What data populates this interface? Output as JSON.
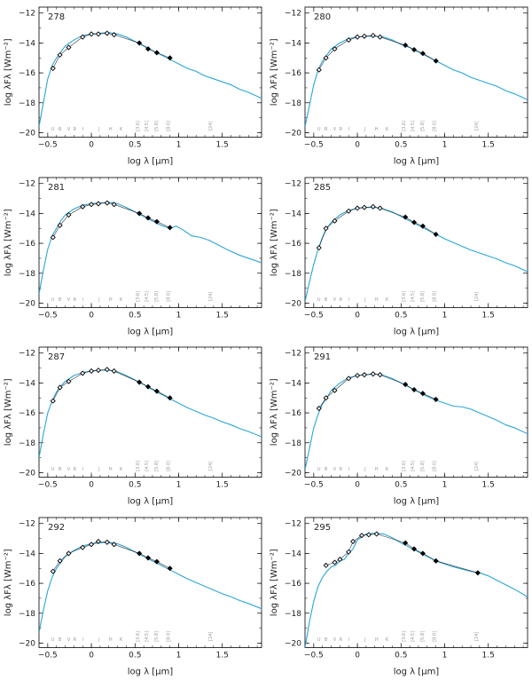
{
  "chart_data": [
    {
      "type": "line",
      "label": "278",
      "xlabel": "log λ [μm]",
      "ylabel": "log λFλ [Wm⁻²]",
      "xlim": [
        -0.6,
        1.95
      ],
      "ylim": [
        -20.3,
        -11.6
      ],
      "xticks": [
        -0.5,
        0,
        0.5,
        1,
        1.5
      ],
      "yticks": [
        -20,
        -18,
        -16,
        -14,
        -12
      ],
      "band_labels": [
        "U",
        "B",
        "V",
        "R",
        "I",
        "J",
        "H",
        "K",
        "[3.6]",
        "[4.5]",
        "[5.8]",
        "[8.0]",
        "[24]"
      ],
      "model": {
        "x": [
          -0.6,
          -0.55,
          -0.5,
          -0.45,
          -0.4,
          -0.35,
          -0.3,
          -0.2,
          -0.1,
          0.0,
          0.1,
          0.2,
          0.3,
          0.4,
          0.5,
          0.6,
          0.7,
          0.8,
          0.9,
          1.0,
          1.1,
          1.2,
          1.3,
          1.4,
          1.5,
          1.6,
          1.7,
          1.8,
          1.95
        ],
        "y": [
          -19.6,
          -18.0,
          -16.4,
          -15.5,
          -15.0,
          -14.6,
          -14.2,
          -13.8,
          -13.5,
          -13.4,
          -13.35,
          -13.3,
          -13.4,
          -13.6,
          -13.9,
          -14.2,
          -14.5,
          -14.8,
          -15.1,
          -15.4,
          -15.7,
          -15.9,
          -16.2,
          -16.4,
          -16.6,
          -16.8,
          -17.1,
          -17.3,
          -17.7
        ]
      },
      "photometry": {
        "x": [
          -0.44,
          -0.36,
          -0.26,
          -0.1,
          0.0,
          0.08,
          0.18,
          0.26,
          0.55,
          0.65,
          0.75,
          0.9
        ],
        "y": [
          -15.7,
          -14.8,
          -14.3,
          -13.6,
          -13.4,
          -13.4,
          -13.35,
          -13.45,
          -14.0,
          -14.4,
          -14.65,
          -15.0
        ]
      }
    },
    {
      "type": "line",
      "label": "280",
      "xlabel": "log λ [μm]",
      "ylabel": "log λFλ [Wm⁻²]",
      "xlim": [
        -0.6,
        1.95
      ],
      "ylim": [
        -20.3,
        -11.6
      ],
      "xticks": [
        -0.5,
        0,
        0.5,
        1,
        1.5
      ],
      "yticks": [
        -20,
        -18,
        -16,
        -14,
        -12
      ],
      "band_labels": [
        "U",
        "B",
        "V",
        "R",
        "I",
        "J",
        "H",
        "K",
        "[3.6]",
        "[4.5]",
        "[5.8]",
        "[8.0]",
        "[24]"
      ],
      "model": {
        "x": [
          -0.6,
          -0.55,
          -0.5,
          -0.45,
          -0.4,
          -0.35,
          -0.3,
          -0.2,
          -0.1,
          0.0,
          0.1,
          0.2,
          0.3,
          0.4,
          0.5,
          0.6,
          0.7,
          0.8,
          0.9,
          1.0,
          1.1,
          1.2,
          1.3,
          1.4,
          1.5,
          1.6,
          1.7,
          1.8,
          1.95
        ],
        "y": [
          -19.6,
          -18.2,
          -16.8,
          -15.8,
          -15.2,
          -14.8,
          -14.4,
          -14.0,
          -13.7,
          -13.6,
          -13.55,
          -13.55,
          -13.6,
          -13.8,
          -14.1,
          -14.3,
          -14.6,
          -14.9,
          -15.2,
          -15.5,
          -15.8,
          -16.0,
          -16.3,
          -16.5,
          -16.7,
          -16.9,
          -17.2,
          -17.4,
          -17.8
        ]
      },
      "photometry": {
        "x": [
          -0.44,
          -0.36,
          -0.26,
          -0.1,
          0.0,
          0.08,
          0.18,
          0.26,
          0.55,
          0.65,
          0.75,
          0.9
        ],
        "y": [
          -15.8,
          -15.0,
          -14.4,
          -13.8,
          -13.6,
          -13.55,
          -13.5,
          -13.6,
          -14.15,
          -14.45,
          -14.7,
          -15.2
        ]
      }
    },
    {
      "type": "line",
      "label": "281",
      "xlabel": "log λ [μm]",
      "ylabel": "log λFλ [Wm⁻²]",
      "xlim": [
        -0.6,
        1.95
      ],
      "ylim": [
        -20.3,
        -11.6
      ],
      "xticks": [
        -0.5,
        0,
        0.5,
        1,
        1.5
      ],
      "yticks": [
        -20,
        -18,
        -16,
        -14,
        -12
      ],
      "band_labels": [
        "U",
        "B",
        "V",
        "R",
        "I",
        "J",
        "H",
        "K",
        "[3.6]",
        "[4.5]",
        "[5.8]",
        "[8.0]",
        "[24]"
      ],
      "model": {
        "x": [
          -0.6,
          -0.55,
          -0.5,
          -0.45,
          -0.4,
          -0.35,
          -0.3,
          -0.2,
          -0.1,
          0.0,
          0.1,
          0.2,
          0.3,
          0.4,
          0.5,
          0.6,
          0.7,
          0.8,
          0.9,
          0.97,
          1.05,
          1.15,
          1.25,
          1.35,
          1.45,
          1.55,
          1.7,
          1.8,
          1.95
        ],
        "y": [
          -19.4,
          -17.8,
          -16.4,
          -15.5,
          -15.0,
          -14.5,
          -14.1,
          -13.7,
          -13.45,
          -13.35,
          -13.3,
          -13.25,
          -13.35,
          -13.6,
          -13.9,
          -14.2,
          -14.5,
          -14.8,
          -15.0,
          -14.85,
          -15.1,
          -15.5,
          -15.6,
          -15.8,
          -16.1,
          -16.4,
          -16.8,
          -17.0,
          -17.3
        ]
      },
      "photometry": {
        "x": [
          -0.44,
          -0.36,
          -0.26,
          -0.1,
          0.0,
          0.08,
          0.18,
          0.26,
          0.55,
          0.65,
          0.75,
          0.9
        ],
        "y": [
          -15.6,
          -14.8,
          -14.1,
          -13.55,
          -13.4,
          -13.35,
          -13.3,
          -13.4,
          -14.0,
          -14.3,
          -14.55,
          -14.95
        ]
      }
    },
    {
      "type": "line",
      "label": "285",
      "xlabel": "log λ [μm]",
      "ylabel": "log λFλ [Wm⁻²]",
      "xlim": [
        -0.6,
        1.95
      ],
      "ylim": [
        -20.3,
        -11.6
      ],
      "xticks": [
        -0.5,
        0,
        0.5,
        1,
        1.5
      ],
      "yticks": [
        -20,
        -18,
        -16,
        -14,
        -12
      ],
      "band_labels": [
        "U",
        "B",
        "V",
        "R",
        "I",
        "J",
        "H",
        "K",
        "[3.6]",
        "[4.5]",
        "[5.8]",
        "[8.0]",
        "[24]"
      ],
      "model": {
        "x": [
          -0.6,
          -0.55,
          -0.5,
          -0.45,
          -0.4,
          -0.35,
          -0.3,
          -0.2,
          -0.1,
          0.0,
          0.1,
          0.2,
          0.3,
          0.4,
          0.5,
          0.6,
          0.7,
          0.8,
          0.9,
          1.0,
          1.1,
          1.2,
          1.3,
          1.4,
          1.5,
          1.6,
          1.7,
          1.8,
          1.95
        ],
        "y": [
          -19.9,
          -18.6,
          -17.4,
          -16.4,
          -15.6,
          -15.0,
          -14.6,
          -14.1,
          -13.8,
          -13.65,
          -13.6,
          -13.6,
          -13.7,
          -13.9,
          -14.2,
          -14.5,
          -14.8,
          -15.1,
          -15.4,
          -15.7,
          -15.95,
          -16.2,
          -16.45,
          -16.65,
          -16.85,
          -17.05,
          -17.3,
          -17.5,
          -17.9
        ]
      },
      "photometry": {
        "x": [
          -0.44,
          -0.36,
          -0.26,
          -0.1,
          0.0,
          0.08,
          0.18,
          0.26,
          0.55,
          0.65,
          0.75,
          0.9
        ],
        "y": [
          -16.3,
          -15.0,
          -14.5,
          -13.85,
          -13.65,
          -13.6,
          -13.55,
          -13.65,
          -14.25,
          -14.6,
          -14.85,
          -15.4
        ]
      }
    },
    {
      "type": "line",
      "label": "287",
      "xlabel": "log λ [μm]",
      "ylabel": "log λFλ [Wm⁻²]",
      "xlim": [
        -0.6,
        1.95
      ],
      "ylim": [
        -20.3,
        -11.6
      ],
      "xticks": [
        -0.5,
        0,
        0.5,
        1,
        1.5
      ],
      "yticks": [
        -20,
        -18,
        -16,
        -14,
        -12
      ],
      "band_labels": [
        "U",
        "B",
        "V",
        "R",
        "I",
        "J",
        "H",
        "K",
        "[3.6]",
        "[4.5]",
        "[5.8]",
        "[8.0]",
        "[24]"
      ],
      "model": {
        "x": [
          -0.6,
          -0.55,
          -0.5,
          -0.45,
          -0.4,
          -0.35,
          -0.3,
          -0.2,
          -0.1,
          0.0,
          0.1,
          0.2,
          0.3,
          0.4,
          0.5,
          0.6,
          0.7,
          0.8,
          0.9,
          1.0,
          1.1,
          1.2,
          1.3,
          1.4,
          1.5,
          1.6,
          1.7,
          1.8,
          1.95
        ],
        "y": [
          -19.0,
          -17.4,
          -16.0,
          -15.2,
          -14.6,
          -14.2,
          -13.9,
          -13.5,
          -13.3,
          -13.2,
          -13.15,
          -13.15,
          -13.25,
          -13.5,
          -13.8,
          -14.1,
          -14.45,
          -14.75,
          -15.05,
          -15.35,
          -15.65,
          -15.9,
          -16.15,
          -16.35,
          -16.6,
          -16.8,
          -17.05,
          -17.25,
          -17.6
        ]
      },
      "photometry": {
        "x": [
          -0.44,
          -0.36,
          -0.26,
          -0.1,
          0.0,
          0.08,
          0.18,
          0.26,
          0.55,
          0.65,
          0.75,
          0.9
        ],
        "y": [
          -15.2,
          -14.3,
          -13.9,
          -13.35,
          -13.2,
          -13.15,
          -13.1,
          -13.2,
          -13.95,
          -14.25,
          -14.55,
          -15.0
        ]
      }
    },
    {
      "type": "line",
      "label": "291",
      "xlabel": "log λ [μm]",
      "ylabel": "log λFλ [Wm⁻²]",
      "xlim": [
        -0.6,
        1.95
      ],
      "ylim": [
        -20.3,
        -11.6
      ],
      "xticks": [
        -0.5,
        0,
        0.5,
        1,
        1.5
      ],
      "yticks": [
        -20,
        -18,
        -16,
        -14,
        -12
      ],
      "band_labels": [
        "U",
        "B",
        "V",
        "R",
        "I",
        "J",
        "H",
        "K",
        "[3.6]",
        "[4.5]",
        "[5.8]",
        "[8.0]",
        "[24]"
      ],
      "model": {
        "x": [
          -0.6,
          -0.55,
          -0.5,
          -0.45,
          -0.4,
          -0.35,
          -0.3,
          -0.2,
          -0.1,
          0.0,
          0.1,
          0.2,
          0.3,
          0.4,
          0.5,
          0.6,
          0.7,
          0.8,
          0.9,
          1.0,
          1.1,
          1.2,
          1.3,
          1.4,
          1.5,
          1.6,
          1.7,
          1.8,
          1.95
        ],
        "y": [
          -19.8,
          -18.4,
          -17.0,
          -16.1,
          -15.4,
          -15.0,
          -14.5,
          -14.0,
          -13.65,
          -13.5,
          -13.45,
          -13.4,
          -13.5,
          -13.7,
          -14.0,
          -14.3,
          -14.6,
          -14.9,
          -15.15,
          -15.35,
          -15.55,
          -15.6,
          -15.75,
          -16.0,
          -16.25,
          -16.5,
          -16.8,
          -17.0,
          -17.4
        ]
      },
      "photometry": {
        "x": [
          -0.44,
          -0.36,
          -0.26,
          -0.1,
          0.0,
          0.08,
          0.18,
          0.26,
          0.55,
          0.65,
          0.75,
          0.9
        ],
        "y": [
          -15.7,
          -15.0,
          -14.5,
          -13.7,
          -13.5,
          -13.45,
          -13.4,
          -13.45,
          -14.1,
          -14.45,
          -14.7,
          -15.1
        ]
      }
    },
    {
      "type": "line",
      "label": "292",
      "xlabel": "log λ [μm]",
      "ylabel": "log λFλ [Wm⁻²]",
      "xlim": [
        -0.6,
        1.95
      ],
      "ylim": [
        -20.3,
        -11.6
      ],
      "xticks": [
        -0.5,
        0,
        0.5,
        1,
        1.5
      ],
      "yticks": [
        -20,
        -18,
        -16,
        -14,
        -12
      ],
      "band_labels": [
        "U",
        "B",
        "V",
        "R",
        "I",
        "J",
        "H",
        "K",
        "[3.6]",
        "[4.5]",
        "[5.8]",
        "[8.0]",
        "[24]"
      ],
      "model": {
        "x": [
          -0.6,
          -0.55,
          -0.5,
          -0.45,
          -0.4,
          -0.35,
          -0.3,
          -0.2,
          -0.1,
          0.0,
          0.1,
          0.2,
          0.3,
          0.4,
          0.5,
          0.6,
          0.7,
          0.8,
          0.9,
          1.0,
          1.1,
          1.2,
          1.3,
          1.4,
          1.5,
          1.6,
          1.7,
          1.8,
          1.95
        ],
        "y": [
          -19.3,
          -17.8,
          -16.5,
          -15.6,
          -15.0,
          -14.6,
          -14.2,
          -13.8,
          -13.5,
          -13.35,
          -13.3,
          -13.25,
          -13.35,
          -13.6,
          -13.9,
          -14.2,
          -14.5,
          -14.8,
          -15.1,
          -15.4,
          -15.7,
          -15.95,
          -16.2,
          -16.45,
          -16.7,
          -16.9,
          -17.15,
          -17.35,
          -17.7
        ]
      },
      "photometry": {
        "x": [
          -0.44,
          -0.36,
          -0.26,
          -0.1,
          0.0,
          0.08,
          0.18,
          0.26,
          0.55,
          0.65,
          0.75,
          0.9
        ],
        "y": [
          -15.2,
          -14.5,
          -14.0,
          -13.6,
          -13.4,
          -13.2,
          -13.25,
          -13.4,
          -14.0,
          -14.3,
          -14.55,
          -15.0
        ]
      }
    },
    {
      "type": "line",
      "label": "295",
      "xlabel": "log λ [μm]",
      "ylabel": "log λFλ [Wm⁻²]",
      "xlim": [
        -0.6,
        1.95
      ],
      "ylim": [
        -20.3,
        -11.6
      ],
      "xticks": [
        -0.5,
        0,
        0.5,
        1,
        1.5
      ],
      "yticks": [
        -20,
        -18,
        -16,
        -14,
        -12
      ],
      "band_labels": [
        "U",
        "B",
        "V",
        "R",
        "I",
        "J",
        "H",
        "K",
        "[3.6]",
        "[4.5]",
        "[5.8]",
        "[8.0]",
        "[24]"
      ],
      "model": {
        "x": [
          -0.6,
          -0.55,
          -0.5,
          -0.45,
          -0.4,
          -0.35,
          -0.3,
          -0.25,
          -0.2,
          -0.15,
          -0.1,
          -0.05,
          0.0,
          0.1,
          0.2,
          0.3,
          0.4,
          0.5,
          0.6,
          0.7,
          0.8,
          0.9,
          1.0,
          1.1,
          1.2,
          1.3,
          1.4,
          1.5,
          1.6,
          1.7,
          1.8,
          1.95
        ],
        "y": [
          -20.3,
          -18.6,
          -17.2,
          -16.2,
          -15.6,
          -15.2,
          -14.9,
          -14.8,
          -14.5,
          -14.4,
          -14.0,
          -13.7,
          -13.1,
          -12.7,
          -12.65,
          -12.7,
          -12.95,
          -13.3,
          -13.6,
          -13.9,
          -14.2,
          -14.5,
          -14.7,
          -14.9,
          -15.05,
          -15.2,
          -15.3,
          -15.5,
          -15.8,
          -16.1,
          -16.4,
          -16.9
        ]
      },
      "photometry": {
        "x": [
          -0.36,
          -0.26,
          -0.2,
          -0.1,
          -0.05,
          0.05,
          0.13,
          0.22,
          0.55,
          0.65,
          0.75,
          0.9,
          1.38
        ],
        "y": [
          -14.8,
          -14.6,
          -14.4,
          -13.9,
          -13.2,
          -12.8,
          -12.75,
          -12.7,
          -13.3,
          -13.7,
          -14.0,
          -14.5,
          -15.3
        ]
      }
    }
  ]
}
